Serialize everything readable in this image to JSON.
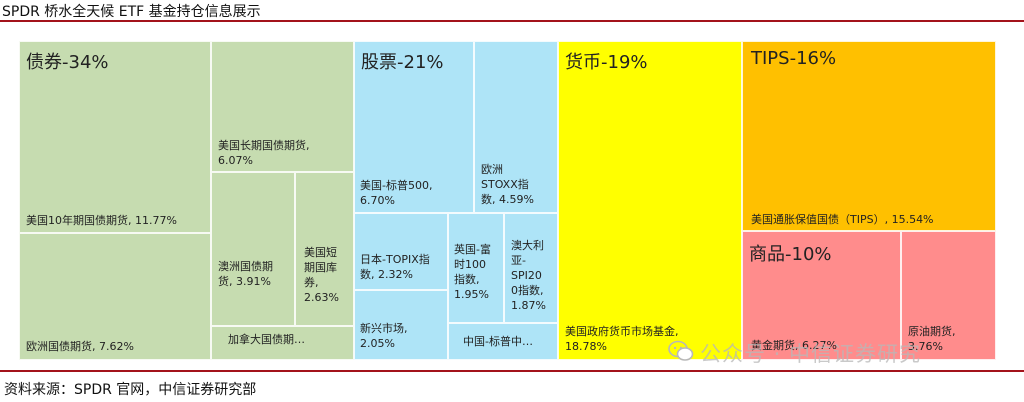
{
  "title": "SPDR 桥水全天候 ETF 基金持仓信息展示",
  "source": "资料来源：SPDR 官网，中信证券研究部",
  "watermark": "公众号 · 中信证券研究",
  "colors": {
    "bonds": "#c6dcb0",
    "stocks": "#aee4f7",
    "cash": "#ffff00",
    "tips": "#ffc000",
    "commodities": "#ff8c8c",
    "rule": "#a3131b"
  },
  "chart_data": {
    "type": "treemap",
    "groups": [
      {
        "name": "债券-34%",
        "color": "#c6dcb0",
        "items": [
          {
            "label": "美国10年期国债期货, 11.77%",
            "value": 11.77
          },
          {
            "label": "欧洲国债期货, 7.62%",
            "value": 7.62
          },
          {
            "label": "美国长期国债期货,\n6.07%",
            "value": 6.07
          },
          {
            "label": "澳洲国债期\n货, 3.91%",
            "value": 3.91
          },
          {
            "label": "美国短\n期国库\n券,\n2.63%",
            "value": 2.63
          },
          {
            "label": "加拿大国债期…",
            "value": null
          }
        ]
      },
      {
        "name": "股票-21%",
        "color": "#aee4f7",
        "items": [
          {
            "label": "美国-标普500,\n6.70%",
            "value": 6.7
          },
          {
            "label": "欧洲\nSTOXX指\n数, 4.59%",
            "value": 4.59
          },
          {
            "label": "日本-TOPIX指\n数, 2.32%",
            "value": 2.32
          },
          {
            "label": "英国-富\n时100\n指数,\n1.95%",
            "value": 1.95
          },
          {
            "label": "澳大利\n亚-\nSPI20\n0指数,\n1.87%",
            "value": 1.87
          },
          {
            "label": "新兴市场,\n2.05%",
            "value": 2.05
          },
          {
            "label": "中国-标普中…",
            "value": null
          }
        ]
      },
      {
        "name": "货币-19%",
        "color": "#ffff00",
        "items": [
          {
            "label": "美国政府货币市场基金,\n18.78%",
            "value": 18.78
          }
        ]
      },
      {
        "name": "TIPS-16%",
        "color": "#ffc000",
        "items": [
          {
            "label": "美国通胀保值国债（TIPS）, 15.54%",
            "value": 15.54
          }
        ]
      },
      {
        "name": "商品-10%",
        "color": "#ff8c8c",
        "items": [
          {
            "label": "黄金期货, 6.27%",
            "value": 6.27
          },
          {
            "label": "原油期货,\n3.76%",
            "value": 3.76
          }
        ]
      }
    ]
  }
}
